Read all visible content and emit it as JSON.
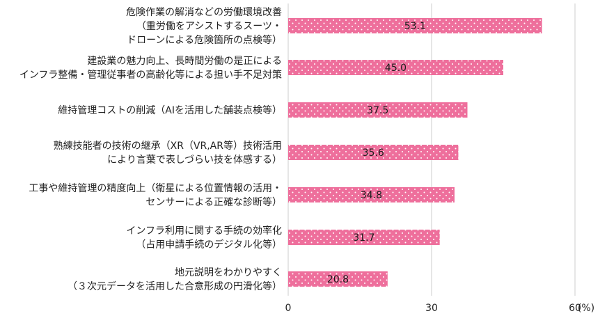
{
  "chart_data": {
    "type": "bar",
    "orientation": "horizontal",
    "categories": [
      [
        "危険作業の解消などの労働環境改善",
        "（重労働をアシストするスーツ・",
        "ドローンによる危険箇所の点検等）"
      ],
      [
        "建設業の魅力向上、長時間労働の是正による",
        "インフラ整備・管理従事者の高齢化等による担い手不足対策"
      ],
      [
        "維持管理コストの削減（AIを活用した舗装点検等）"
      ],
      [
        "熟練技能者の技術の継承（XR（VR,AR等）技術活用",
        "により言葉で表しづらい技を体感する）"
      ],
      [
        "工事や維持管理の精度向上（衛星による位置情報の活用・",
        "センサーによる正確な診断等）"
      ],
      [
        "インフラ利用に関する手続の効率化",
        "（占用申請手続のデジタル化等）"
      ],
      [
        "地元説明をわかりやすく",
        "（３次元データを活用した合意形成の円滑化等）"
      ]
    ],
    "values": [
      53.1,
      45.0,
      37.5,
      35.6,
      34.8,
      31.7,
      20.8
    ],
    "value_labels": [
      "53.1",
      "45.0",
      "37.5",
      "35.6",
      "34.8",
      "31.7",
      "20.8"
    ],
    "xlim": [
      0,
      60
    ],
    "ticks": [
      0,
      30,
      60
    ],
    "tick_labels": [
      "0",
      "30",
      "60"
    ],
    "unit_label": "(%)",
    "grid": true,
    "bar_color": "#ee6f9c",
    "dot_color": "#ffffff",
    "grid_color": "#cccccc"
  }
}
